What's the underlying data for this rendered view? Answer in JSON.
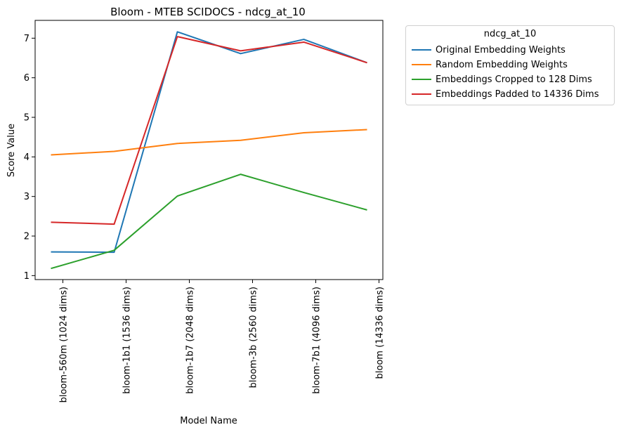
{
  "chart_data": {
    "type": "line",
    "title": "Bloom - MTEB SCIDOCS - ndcg_at_10",
    "xlabel": "Model Name",
    "ylabel": "Score Value",
    "categories": [
      "bloom-560m (1024 dims)",
      "bloom-1b1 (1536 dims)",
      "bloom-1b7 (2048 dims)",
      "bloom-3b (2560 dims)",
      "bloom-7b1 (4096 dims)",
      "bloom (14336 dims)"
    ],
    "ylim": [
      0.9,
      7.45
    ],
    "yticks": [
      1,
      2,
      3,
      4,
      5,
      6,
      7
    ],
    "legend_title": "ndcg_at_10",
    "legend_position": "outside-right",
    "series": [
      {
        "name": "Original Embedding Weights",
        "color": "#1f77b4",
        "values": [
          1.6,
          1.59,
          7.16,
          6.61,
          6.97,
          6.38
        ]
      },
      {
        "name": "Random Embedding Weights",
        "color": "#ff7f0e",
        "values": [
          4.05,
          4.14,
          4.34,
          4.42,
          4.61,
          4.69
        ]
      },
      {
        "name": "Embeddings Cropped to 128 Dims",
        "color": "#2ca02c",
        "values": [
          1.18,
          1.64,
          3.01,
          3.56,
          3.1,
          2.66
        ]
      },
      {
        "name": "Embeddings Padded to 14336 Dims",
        "color": "#d62728",
        "values": [
          2.35,
          2.3,
          7.04,
          6.68,
          6.9,
          6.38
        ]
      }
    ]
  }
}
